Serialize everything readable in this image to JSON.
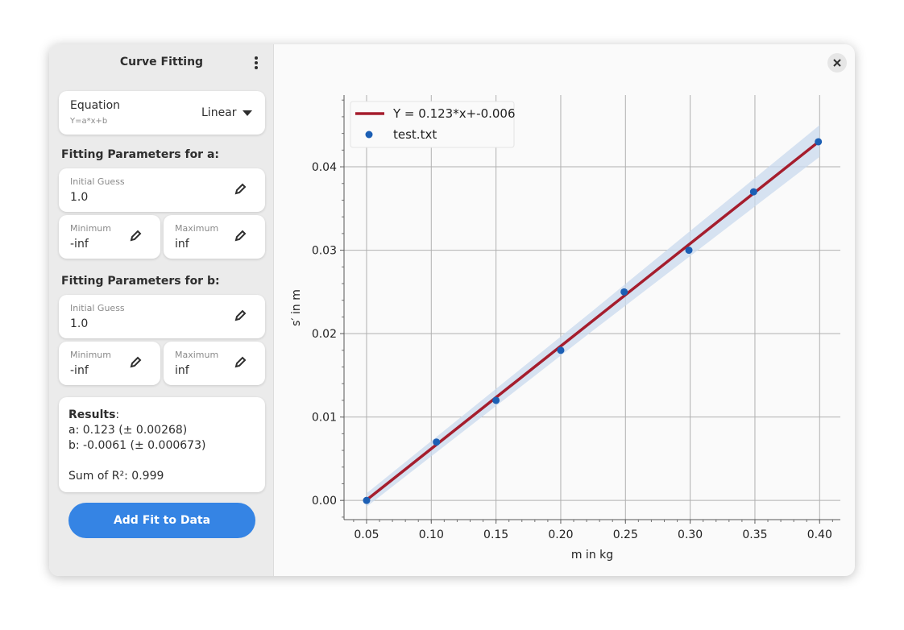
{
  "sidebar": {
    "title": "Curve Fitting",
    "equation": {
      "label": "Equation",
      "formula": "Y=a*x+b",
      "selected": "Linear"
    },
    "params_a": {
      "heading": "Fitting Parameters for a:",
      "initial_label": "Initial Guess",
      "initial": "1.0",
      "min_label": "Minimum",
      "min": "-inf",
      "max_label": "Maximum",
      "max": "inf"
    },
    "params_b": {
      "heading": "Fitting Parameters for b:",
      "initial_label": "Initial Guess",
      "initial": "1.0",
      "min_label": "Minimum",
      "min": "-inf",
      "max_label": "Maximum",
      "max": "inf"
    },
    "results": {
      "heading": "Results",
      "colon": ":",
      "a": "a: 0.123 (± 0.00268)",
      "b": "b: -0.0061 (± 0.000673)",
      "r2": "Sum of R²: 0.999"
    },
    "add_button": "Add Fit to Data"
  },
  "colors": {
    "accent": "#3584e4",
    "fit": "#a51d2d",
    "points": "#1c5fb4",
    "band": "#c9d9ee"
  },
  "chart_data": {
    "type": "scatter",
    "xlabel": "m in kg",
    "ylabel": "s′ in m",
    "xlim": [
      0.0326,
      0.416
    ],
    "ylim": [
      -0.0023,
      0.0486
    ],
    "xticks": [
      0.05,
      0.1,
      0.15,
      0.2,
      0.25,
      0.3,
      0.35,
      0.4
    ],
    "xtick_labels": [
      "0.05",
      "0.10",
      "0.15",
      "0.20",
      "0.25",
      "0.30",
      "0.35",
      "0.40"
    ],
    "yticks": [
      0,
      0.01,
      0.02,
      0.03,
      0.04
    ],
    "ytick_labels": [
      "0.00",
      "0.01",
      "0.02",
      "0.03",
      "0.04"
    ],
    "grid": true,
    "legend_position": "top-left",
    "series": [
      {
        "name": "test.txt",
        "kind": "scatter",
        "x": [
          0.05,
          0.104,
          0.15,
          0.2,
          0.249,
          0.299,
          0.349,
          0.399
        ],
        "y": [
          0.0,
          0.007,
          0.012,
          0.018,
          0.025,
          0.03,
          0.037,
          0.043
        ]
      },
      {
        "name": "Y = 0.123*x+-0.006",
        "kind": "line",
        "slope": 0.123,
        "intercept": -0.0061,
        "x": [
          0.05,
          0.4
        ]
      }
    ],
    "band": {
      "x": [
        0.05,
        0.225,
        0.4
      ],
      "lower": [
        -0.00075,
        0.02038,
        0.0412
      ],
      "upper": [
        0.00085,
        0.02278,
        0.045
      ]
    }
  }
}
